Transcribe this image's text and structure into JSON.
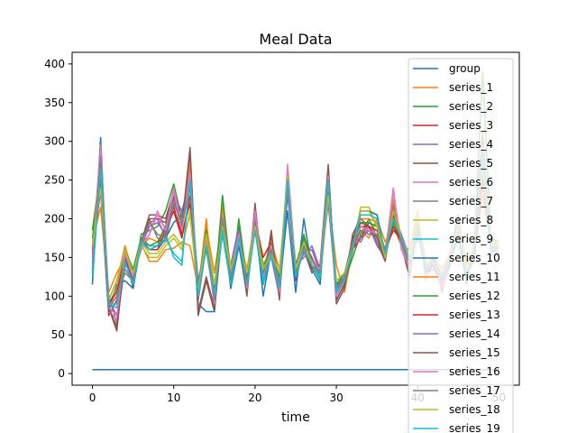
{
  "chart_data": {
    "type": "line",
    "title": "Meal Data",
    "xlabel": "time",
    "ylabel": "",
    "xlim": [
      -2.5,
      52.5
    ],
    "ylim": [
      -15,
      415
    ],
    "xticks": [
      0,
      10,
      20,
      30,
      40,
      50
    ],
    "xtick_labels": [
      "0",
      "10",
      "20",
      "30",
      "40",
      "50"
    ],
    "yticks": [
      0,
      50,
      100,
      150,
      200,
      250,
      300,
      350,
      400
    ],
    "ytick_labels": [
      "0",
      "50",
      "100",
      "150",
      "200",
      "250",
      "300",
      "350",
      "400"
    ],
    "grid": false,
    "legend_position": "upper-right",
    "x": [
      0,
      1,
      2,
      3,
      4,
      5,
      6,
      7,
      8,
      9,
      10,
      11,
      12,
      13,
      14,
      15,
      16,
      17,
      18,
      19,
      20,
      21,
      22,
      23,
      24,
      25,
      26,
      27,
      28,
      29,
      30,
      31,
      32,
      33,
      34,
      35,
      36,
      37,
      38,
      39,
      40,
      41,
      42,
      43,
      44,
      45,
      46,
      47,
      48,
      49,
      50
    ],
    "series": [
      {
        "name": "group",
        "color": "#1f77b4",
        "values": [
          5,
          5,
          5,
          5,
          5,
          5,
          5,
          5,
          5,
          5,
          5,
          5,
          5,
          5,
          5,
          5,
          5,
          5,
          5,
          5,
          5,
          5,
          5,
          5,
          5,
          5,
          5,
          5,
          5,
          5,
          5,
          5,
          5,
          5,
          5,
          5,
          5,
          5,
          5,
          5,
          5,
          5,
          5,
          5,
          5,
          5,
          5,
          5,
          5,
          5,
          5
        ]
      },
      {
        "name": "series_1",
        "color": "#ff7f0e",
        "values": [
          170,
          215,
          105,
          130,
          150,
          125,
          168,
          145,
          145,
          160,
          162,
          170,
          165,
          110,
          190,
          130,
          200,
          125,
          175,
          135,
          195,
          120,
          170,
          135,
          245,
          130,
          170,
          140,
          120,
          230,
          140,
          105,
          160,
          185,
          175,
          200,
          170,
          190,
          165,
          160,
          210,
          120,
          150,
          135,
          155,
          200,
          140,
          165,
          230,
          170,
          160
        ]
      },
      {
        "name": "series_2",
        "color": "#2ca02c",
        "values": [
          185,
          265,
          90,
          110,
          160,
          120,
          180,
          185,
          190,
          210,
          245,
          200,
          245,
          100,
          180,
          90,
          230,
          110,
          200,
          120,
          205,
          140,
          160,
          120,
          255,
          130,
          180,
          140,
          130,
          250,
          115,
          120,
          150,
          180,
          200,
          175,
          155,
          195,
          170,
          140,
          195,
          140,
          140,
          120,
          150,
          185,
          130,
          170,
          280,
          175,
          170
        ]
      },
      {
        "name": "series_3",
        "color": "#d62728",
        "values": [
          150,
          240,
          75,
          95,
          145,
          115,
          175,
          160,
          165,
          190,
          215,
          180,
          220,
          95,
          165,
          100,
          205,
          115,
          185,
          125,
          200,
          150,
          170,
          110,
          240,
          120,
          165,
          150,
          125,
          240,
          95,
          115,
          160,
          175,
          195,
          190,
          160,
          185,
          175,
          130,
          185,
          130,
          135,
          115,
          145,
          180,
          125,
          150,
          250,
          160,
          160
        ]
      },
      {
        "name": "series_4",
        "color": "#9467bd",
        "values": [
          130,
          280,
          100,
          65,
          140,
          130,
          160,
          195,
          200,
          175,
          230,
          210,
          245,
          120,
          170,
          110,
          180,
          140,
          190,
          115,
          210,
          130,
          150,
          100,
          230,
          140,
          150,
          165,
          135,
          220,
          105,
          125,
          175,
          170,
          190,
          165,
          150,
          205,
          180,
          150,
          175,
          150,
          145,
          110,
          140,
          190,
          120,
          160,
          260,
          165,
          150
        ]
      },
      {
        "name": "series_5",
        "color": "#8c564b",
        "values": [
          160,
          255,
          85,
          55,
          155,
          110,
          170,
          205,
          205,
          200,
          235,
          190,
          292,
          75,
          120,
          80,
          190,
          125,
          170,
          100,
          220,
          115,
          185,
          95,
          265,
          125,
          160,
          130,
          140,
          270,
          90,
          110,
          180,
          200,
          190,
          170,
          145,
          210,
          165,
          125,
          200,
          135,
          150,
          105,
          155,
          205,
          115,
          175,
          310,
          155,
          165
        ]
      },
      {
        "name": "series_6",
        "color": "#e377c2",
        "values": [
          140,
          300,
          80,
          70,
          160,
          125,
          160,
          180,
          210,
          185,
          240,
          185,
          265,
          105,
          175,
          85,
          210,
          130,
          180,
          105,
          215,
          125,
          165,
          105,
          270,
          135,
          155,
          145,
          130,
          260,
          100,
          120,
          165,
          190,
          185,
          185,
          150,
          240,
          160,
          135,
          190,
          140,
          140,
          110,
          150,
          195,
          120,
          165,
          300,
          160,
          160
        ]
      },
      {
        "name": "series_7",
        "color": "#7f7f7f",
        "values": [
          130,
          285,
          85,
          100,
          130,
          120,
          170,
          200,
          175,
          170,
          220,
          195,
          240,
          110,
          160,
          95,
          200,
          120,
          165,
          110,
          190,
          135,
          160,
          115,
          250,
          140,
          170,
          150,
          120,
          245,
          110,
          130,
          170,
          185,
          180,
          180,
          155,
          220,
          170,
          140,
          195,
          130,
          145,
          120,
          145,
          185,
          125,
          160,
          270,
          165,
          155
        ]
      },
      {
        "name": "series_8",
        "color": "#bcbd22",
        "values": [
          170,
          245,
          95,
          120,
          165,
          130,
          165,
          150,
          150,
          165,
          175,
          160,
          210,
          100,
          185,
          115,
          195,
          140,
          170,
          130,
          190,
          140,
          150,
          130,
          260,
          135,
          175,
          140,
          125,
          235,
          120,
          130,
          155,
          215,
          215,
          190,
          150,
          215,
          175,
          150,
          205,
          145,
          145,
          130,
          150,
          190,
          130,
          170,
          270,
          170,
          165
        ]
      },
      {
        "name": "series_9",
        "color": "#17becf",
        "values": [
          120,
          270,
          90,
          85,
          150,
          115,
          175,
          165,
          165,
          180,
          150,
          140,
          255,
          95,
          170,
          100,
          180,
          115,
          175,
          115,
          185,
          115,
          155,
          110,
          255,
          125,
          160,
          140,
          120,
          255,
          100,
          120,
          160,
          210,
          210,
          205,
          155,
          200,
          175,
          145,
          190,
          135,
          150,
          125,
          150,
          180,
          125,
          155,
          290,
          155,
          165
        ]
      },
      {
        "name": "series_10",
        "color": "#1f77b4",
        "values": [
          115,
          305,
          80,
          115,
          120,
          110,
          175,
          160,
          160,
          175,
          195,
          205,
          260,
          90,
          80,
          80,
          205,
          110,
          165,
          105,
          200,
          100,
          160,
          110,
          210,
          105,
          200,
          135,
          115,
          265,
          95,
          115,
          170,
          210,
          210,
          205,
          150,
          210,
          175,
          135,
          185,
          130,
          140,
          110,
          145,
          175,
          120,
          165,
          270,
          160,
          155
        ]
      },
      {
        "name": "series_11",
        "color": "#ff7f0e",
        "values": [
          160,
          290,
          85,
          110,
          165,
          125,
          165,
          175,
          170,
          185,
          225,
          195,
          270,
          105,
          200,
          95,
          215,
          125,
          185,
          120,
          210,
          130,
          175,
          120,
          255,
          135,
          170,
          150,
          130,
          250,
          110,
          125,
          165,
          200,
          200,
          195,
          160,
          225,
          175,
          145,
          200,
          140,
          150,
          120,
          155,
          195,
          130,
          165,
          295,
          170,
          165
        ]
      },
      {
        "name": "series_12",
        "color": "#2ca02c",
        "values": [
          175,
          250,
          95,
          120,
          160,
          135,
          175,
          165,
          170,
          190,
          230,
          185,
          250,
          110,
          185,
          105,
          230,
          130,
          190,
          125,
          205,
          135,
          165,
          125,
          250,
          140,
          175,
          145,
          135,
          245,
          115,
          130,
          160,
          195,
          195,
          190,
          160,
          200,
          175,
          145,
          195,
          140,
          145,
          125,
          150,
          190,
          130,
          170,
          390,
          175,
          165
        ]
      },
      {
        "name": "series_13",
        "color": "#d62728",
        "values": [
          165,
          235,
          90,
          105,
          150,
          120,
          170,
          160,
          160,
          185,
          210,
          175,
          230,
          100,
          170,
          100,
          200,
          120,
          180,
          120,
          195,
          130,
          160,
          115,
          240,
          125,
          165,
          140,
          125,
          240,
          105,
          120,
          160,
          190,
          190,
          185,
          155,
          190,
          170,
          140,
          190,
          135,
          140,
          120,
          145,
          185,
          125,
          160,
          255,
          165,
          160
        ]
      },
      {
        "name": "series_14",
        "color": "#9467bd",
        "values": [
          135,
          275,
          95,
          75,
          145,
          125,
          165,
          190,
          195,
          180,
          225,
          205,
          240,
          115,
          170,
          105,
          185,
          135,
          185,
          115,
          205,
          125,
          155,
          105,
          235,
          135,
          155,
          160,
          130,
          225,
          105,
          125,
          170,
          175,
          185,
          170,
          155,
          210,
          175,
          145,
          180,
          145,
          145,
          115,
          140,
          185,
          120,
          160,
          265,
          160,
          155
        ]
      },
      {
        "name": "series_15",
        "color": "#8c564b",
        "values": [
          155,
          260,
          85,
          60,
          150,
          115,
          170,
          200,
          200,
          195,
          230,
          190,
          285,
          80,
          125,
          85,
          195,
          125,
          175,
          105,
          215,
          120,
          180,
          100,
          260,
          125,
          160,
          135,
          140,
          265,
          95,
          115,
          175,
          195,
          190,
          175,
          150,
          205,
          170,
          130,
          195,
          135,
          150,
          110,
          150,
          200,
          120,
          170,
          305,
          160,
          165
        ]
      },
      {
        "name": "series_16",
        "color": "#e377c2",
        "values": [
          145,
          295,
          85,
          75,
          155,
          125,
          165,
          180,
          205,
          185,
          235,
          185,
          260,
          105,
          170,
          90,
          205,
          130,
          180,
          110,
          210,
          125,
          165,
          105,
          265,
          135,
          160,
          145,
          135,
          255,
          100,
          120,
          165,
          190,
          185,
          180,
          155,
          235,
          165,
          135,
          190,
          140,
          145,
          110,
          150,
          195,
          125,
          165,
          295,
          160,
          160
        ]
      },
      {
        "name": "series_17",
        "color": "#7f7f7f",
        "values": [
          135,
          280,
          85,
          100,
          135,
          120,
          170,
          195,
          180,
          175,
          220,
          195,
          240,
          110,
          165,
          95,
          200,
          125,
          170,
          115,
          195,
          130,
          160,
          115,
          245,
          140,
          165,
          150,
          125,
          245,
          110,
          125,
          170,
          185,
          180,
          180,
          155,
          215,
          170,
          140,
          190,
          135,
          145,
          120,
          145,
          185,
          125,
          160,
          275,
          165,
          160
        ]
      },
      {
        "name": "series_18",
        "color": "#bcbd22",
        "values": [
          165,
          240,
          95,
          120,
          160,
          130,
          170,
          155,
          155,
          170,
          180,
          165,
          205,
          105,
          180,
          115,
          190,
          135,
          170,
          130,
          190,
          135,
          155,
          130,
          255,
          135,
          170,
          140,
          125,
          230,
          120,
          130,
          160,
          210,
          210,
          190,
          150,
          210,
          175,
          150,
          200,
          145,
          145,
          130,
          150,
          190,
          130,
          170,
          265,
          170,
          165
        ]
      },
      {
        "name": "series_19",
        "color": "#17becf",
        "values": [
          125,
          265,
          90,
          90,
          145,
          115,
          170,
          160,
          165,
          175,
          155,
          145,
          250,
          100,
          165,
          100,
          185,
          115,
          175,
          115,
          185,
          120,
          155,
          110,
          250,
          125,
          160,
          140,
          125,
          250,
          105,
          120,
          160,
          205,
          205,
          200,
          155,
          200,
          175,
          145,
          185,
          135,
          145,
          125,
          150,
          180,
          125,
          160,
          285,
          160,
          165
        ]
      }
    ]
  }
}
